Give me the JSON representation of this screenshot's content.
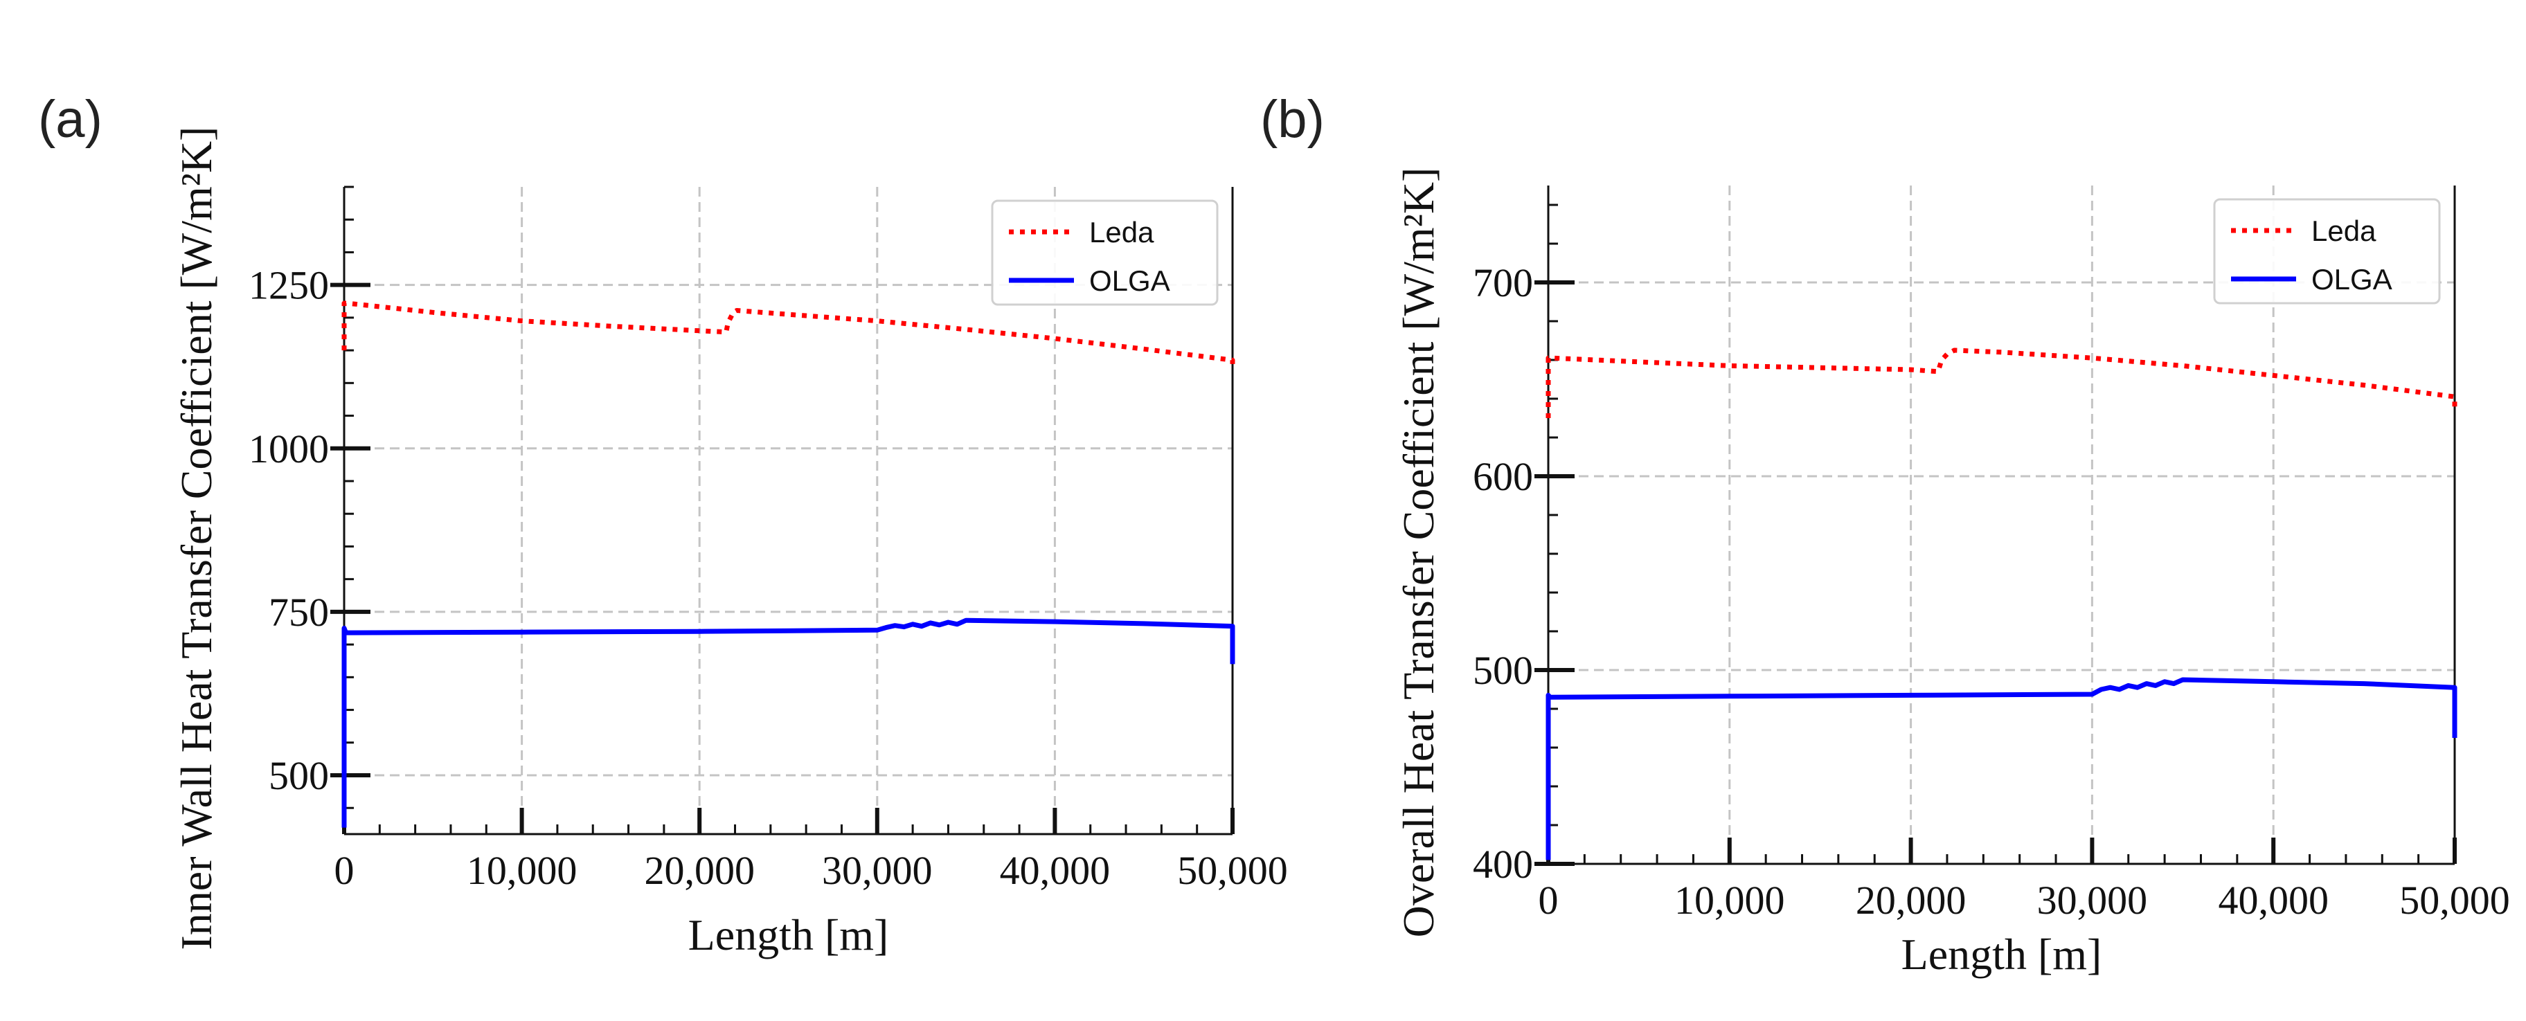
{
  "chart_data": [
    {
      "panel_label": "(a)",
      "type": "line",
      "xlabel": "Length [m]",
      "ylabel": "Inner Wall Heat Transfer Coefficient [W/m²K]",
      "xlim": [
        0,
        50000
      ],
      "ylim": [
        410,
        1400
      ],
      "xticks": [
        0,
        10000,
        20000,
        30000,
        40000,
        50000
      ],
      "xtick_labels": [
        "0",
        "10,000",
        "20,000",
        "30,000",
        "40,000",
        "50,000"
      ],
      "yticks": [
        500,
        750,
        1000,
        1250
      ],
      "ytick_labels": [
        "500",
        "750",
        "1000",
        "1250"
      ],
      "grid": true,
      "legend_position": "top-right",
      "series": [
        {
          "name": "Leda",
          "color": "#ff0000",
          "style": "dotted",
          "x": [
            0,
            0,
            200,
            5000,
            10000,
            15000,
            20000,
            21500,
            21600,
            21900,
            22100,
            25000,
            30000,
            35000,
            40000,
            45000,
            50000,
            50000
          ],
          "y": [
            1150,
            1222,
            1222,
            1208,
            1195,
            1187,
            1180,
            1178,
            1192,
            1208,
            1211,
            1205,
            1195,
            1182,
            1168,
            1152,
            1135,
            1125
          ]
        },
        {
          "name": "OLGA",
          "color": "#0000ff",
          "style": "solid",
          "x": [
            0,
            0,
            100,
            10000,
            20000,
            30000,
            30500,
            31000,
            31500,
            32000,
            32500,
            33000,
            33500,
            34000,
            34500,
            35000,
            40000,
            45000,
            50000,
            50000
          ],
          "y": [
            420,
            725,
            718,
            719,
            720,
            722,
            726,
            729,
            727,
            731,
            728,
            733,
            730,
            734,
            731,
            737,
            735,
            732,
            728,
            670
          ]
        }
      ]
    },
    {
      "panel_label": "(b)",
      "type": "line",
      "xlabel": "Length [m]",
      "ylabel": "Overall Heat Transfer Coefficient [W/m²K]",
      "xlim": [
        0,
        50000
      ],
      "ylim": [
        400,
        750
      ],
      "xticks": [
        0,
        10000,
        20000,
        30000,
        40000,
        50000
      ],
      "xtick_labels": [
        "0",
        "10,000",
        "20,000",
        "30,000",
        "40,000",
        "50,000"
      ],
      "yticks": [
        400,
        500,
        600,
        700
      ],
      "ytick_labels": [
        "400",
        "500",
        "600",
        "700"
      ],
      "grid": true,
      "legend_position": "top-right",
      "series": [
        {
          "name": "Leda",
          "color": "#ff0000",
          "style": "dotted",
          "x": [
            0,
            0,
            200,
            5000,
            10000,
            15000,
            20000,
            21500,
            21700,
            22000,
            22400,
            25000,
            30000,
            35000,
            40000,
            45000,
            50000,
            50000
          ],
          "y": [
            630,
            661,
            661,
            659,
            657,
            656,
            655,
            654,
            660,
            663,
            665,
            664,
            661,
            657,
            652,
            647,
            641,
            633
          ]
        },
        {
          "name": "OLGA",
          "color": "#0000ff",
          "style": "solid",
          "x": [
            0,
            0,
            100,
            10000,
            20000,
            30000,
            30500,
            31000,
            31500,
            32000,
            32500,
            33000,
            33500,
            34000,
            34500,
            35000,
            40000,
            45000,
            50000,
            50000
          ],
          "y": [
            402,
            487,
            486,
            486.5,
            487,
            487.5,
            490,
            491,
            490,
            492,
            491,
            493,
            492,
            494,
            493,
            495,
            494,
            493,
            491,
            465
          ]
        }
      ]
    }
  ]
}
